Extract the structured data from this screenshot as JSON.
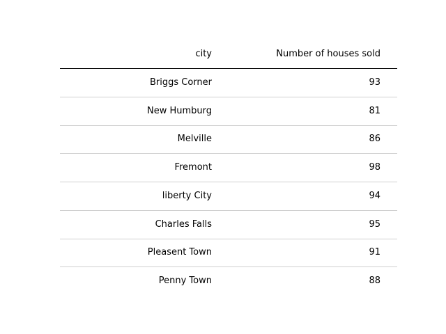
{
  "chart_data": {
    "type": "table",
    "columns": [
      "city",
      "Number of houses sold"
    ],
    "rows": [
      {
        "city": "Briggs Corner",
        "value": "93"
      },
      {
        "city": "New Humburg",
        "value": "81"
      },
      {
        "city": "Melville",
        "value": "86"
      },
      {
        "city": "Fremont",
        "value": "98"
      },
      {
        "city": "liberty City",
        "value": "94"
      },
      {
        "city": "Charles Falls",
        "value": "95"
      },
      {
        "city": "Pleasent Town",
        "value": "91"
      },
      {
        "city": "Penny Town",
        "value": "88"
      }
    ]
  }
}
